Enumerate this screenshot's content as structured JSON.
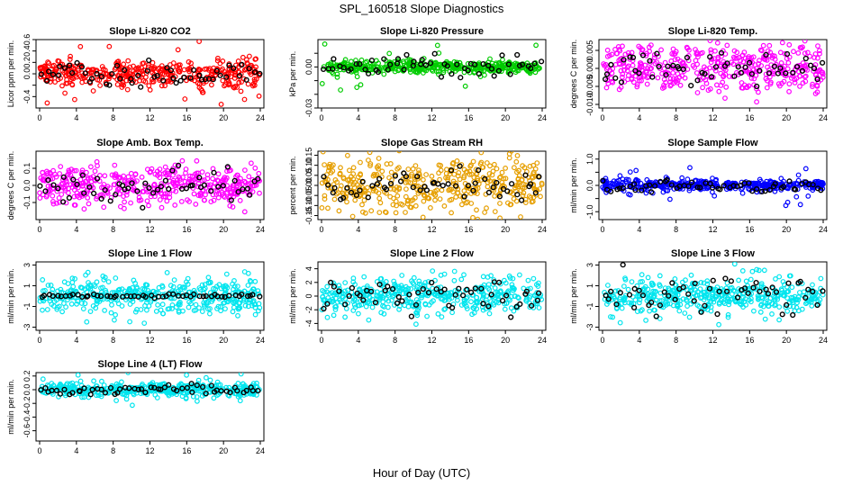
{
  "figure": {
    "title": "SPL_160518  Slope Diagnostics",
    "xlabel": "Hour of Day (UTC)"
  },
  "chart_data": [
    {
      "type": "scatter",
      "title": "Slope Li-820 CO2",
      "ylabel": "Licor ppm per min.",
      "xlim": [
        0,
        24
      ],
      "x_ticks": [
        0,
        4,
        8,
        12,
        16,
        20,
        24
      ],
      "ylim": [
        -0.6,
        0.6
      ],
      "y_ticks": [
        -0.4,
        -0.2,
        0.0,
        0.2,
        0.4,
        0.6
      ],
      "y_tick_labels": [
        "-0.4",
        "",
        "0.0",
        "0.2",
        "0.4",
        "0.6"
      ],
      "color": "#ff0000",
      "spread": 0.12,
      "tail": 0.45,
      "black_spread": 0.1,
      "series": [
        {
          "name": "",
          "color": "#ff0000"
        },
        {
          "name": "",
          "color": "#000000"
        }
      ]
    },
    {
      "type": "scatter",
      "title": "Slope Li-820 Pressure",
      "ylabel": "kPa per min.",
      "xlim": [
        0,
        24
      ],
      "x_ticks": [
        0,
        4,
        8,
        12,
        16,
        20,
        24
      ],
      "ylim": [
        -0.03,
        0.02
      ],
      "y_ticks": [
        -0.03,
        -0.02,
        -0.01,
        0.0,
        0.01
      ],
      "y_tick_labels": [
        "-0.03",
        "",
        "",
        "0.00",
        ""
      ],
      "color": "#00cc00",
      "spread": 0.002,
      "tail": 0.015,
      "black_spread": 0.004,
      "series": [
        {
          "name": "",
          "color": "#00cc00"
        },
        {
          "name": "",
          "color": "#000000"
        }
      ]
    },
    {
      "type": "scatter",
      "title": "Slope Li-820 Temp.",
      "ylabel": "degrees C per min.",
      "xlim": [
        0,
        24
      ],
      "x_ticks": [
        0,
        4,
        8,
        12,
        16,
        20,
        24
      ],
      "ylim": [
        -0.011,
        0.008
      ],
      "y_ticks": [
        -0.01,
        -0.005,
        0.0,
        0.005
      ],
      "y_tick_labels": [
        "-0.010",
        "-0.005",
        "0.000",
        "0.005"
      ],
      "color": "#ff00ff",
      "spread": 0.0035,
      "tail": 0.003,
      "black_spread": 0.002,
      "series": [
        {
          "name": "",
          "color": "#ff00ff"
        },
        {
          "name": "",
          "color": "#000000"
        }
      ]
    },
    {
      "type": "scatter",
      "title": "Slope Amb. Box Temp.",
      "ylabel": "degrees C per min.",
      "xlim": [
        0,
        24
      ],
      "x_ticks": [
        0,
        4,
        8,
        12,
        16,
        20,
        24
      ],
      "ylim": [
        -0.2,
        0.2
      ],
      "y_ticks": [
        -0.1,
        0.0,
        0.1
      ],
      "y_tick_labels": [
        "-0.1",
        "0.0",
        "0.1"
      ],
      "color": "#ff00ff",
      "spread": 0.06,
      "tail": 0.06,
      "black_spread": 0.05,
      "series": [
        {
          "name": "",
          "color": "#ff00ff"
        },
        {
          "name": "",
          "color": "#000000"
        }
      ]
    },
    {
      "type": "scatter",
      "title": "Slope Gas Stream RH",
      "ylabel": "percent per min.",
      "xlim": [
        0,
        24
      ],
      "x_ticks": [
        0,
        4,
        8,
        12,
        16,
        20,
        24
      ],
      "ylim": [
        -0.17,
        0.17
      ],
      "y_ticks": [
        -0.15,
        -0.1,
        -0.05,
        0.0,
        0.05,
        0.1,
        0.15
      ],
      "y_tick_labels": [
        "-0.15",
        "-0.10",
        "-0.05",
        "0.00",
        "0.05",
        "0.10",
        "0.15"
      ],
      "color": "#e69f00",
      "spread": 0.07,
      "tail": 0.05,
      "black_spread": 0.04,
      "series": [
        {
          "name": "",
          "color": "#e69f00"
        },
        {
          "name": "",
          "color": "#000000"
        }
      ]
    },
    {
      "type": "scatter",
      "title": "Slope Sample Flow",
      "ylabel": "ml/min per min.",
      "xlim": [
        0,
        24
      ],
      "x_ticks": [
        0,
        4,
        8,
        12,
        16,
        20,
        24
      ],
      "ylim": [
        -1.3,
        1.3
      ],
      "y_ticks": [
        -1.0,
        -0.5,
        0.0,
        0.5,
        1.0
      ],
      "y_tick_labels": [
        "-1.0",
        "",
        "0.0",
        "",
        "1.0"
      ],
      "color": "#0000ff",
      "spread": 0.1,
      "tail": 0.8,
      "black_spread": 0.12,
      "series": [
        {
          "name": "",
          "color": "#0000ff"
        },
        {
          "name": "",
          "color": "#000000"
        }
      ]
    },
    {
      "type": "scatter",
      "title": "Slope Line 1 Flow",
      "ylabel": "ml/min per min.",
      "xlim": [
        0,
        24
      ],
      "x_ticks": [
        0,
        4,
        8,
        12,
        16,
        20,
        24
      ],
      "ylim": [
        -3.3,
        3.3
      ],
      "y_ticks": [
        -3,
        -1,
        1,
        3
      ],
      "y_tick_labels": [
        "-3",
        "-1",
        "1",
        "3"
      ],
      "color": "#00e5ee",
      "spread": 0.8,
      "tail": 2.0,
      "black_spread": 0.08,
      "series": [
        {
          "name": "",
          "color": "#00e5ee"
        },
        {
          "name": "",
          "color": "#000000"
        }
      ]
    },
    {
      "type": "scatter",
      "title": "Slope Line 2 Flow",
      "ylabel": "ml/min per min.",
      "xlim": [
        0,
        24
      ],
      "x_ticks": [
        0,
        4,
        8,
        12,
        16,
        20,
        24
      ],
      "ylim": [
        -5,
        5
      ],
      "y_ticks": [
        -4,
        -2,
        0,
        2,
        4
      ],
      "y_tick_labels": [
        "-4",
        "-2",
        "0",
        "2",
        "4"
      ],
      "color": "#00e5ee",
      "spread": 1.3,
      "tail": 2.5,
      "black_spread": 1.3,
      "series": [
        {
          "name": "",
          "color": "#00e5ee"
        },
        {
          "name": "",
          "color": "#000000"
        }
      ]
    },
    {
      "type": "scatter",
      "title": "Slope Line 3 Flow",
      "ylabel": "ml/min per min.",
      "xlim": [
        0,
        24
      ],
      "x_ticks": [
        0,
        4,
        8,
        12,
        16,
        20,
        24
      ],
      "ylim": [
        -3.3,
        3.3
      ],
      "y_ticks": [
        -3,
        -1,
        1,
        3
      ],
      "y_tick_labels": [
        "-3",
        "-1",
        "1",
        "3"
      ],
      "color": "#00e5ee",
      "spread": 0.8,
      "tail": 2.0,
      "black_spread": 1.0,
      "series": [
        {
          "name": "",
          "color": "#00e5ee"
        },
        {
          "name": "",
          "color": "#000000"
        }
      ]
    },
    {
      "type": "scatter",
      "title": "Slope Line 4 (LT) Flow",
      "ylabel": "ml/min per min.",
      "xlim": [
        0,
        24
      ],
      "x_ticks": [
        0,
        4,
        8,
        12,
        16,
        20,
        24
      ],
      "ylim": [
        -0.75,
        0.25
      ],
      "y_ticks": [
        -0.6,
        -0.4,
        -0.2,
        0.0,
        0.2
      ],
      "y_tick_labels": [
        "-0.6",
        "-0.4",
        "-0.2",
        "0.0",
        "0.2"
      ],
      "color": "#00e5ee",
      "spread": 0.05,
      "tail": 0.2,
      "black_spread": 0.04,
      "series": [
        {
          "name": "",
          "color": "#00e5ee"
        },
        {
          "name": "",
          "color": "#000000"
        }
      ]
    }
  ]
}
